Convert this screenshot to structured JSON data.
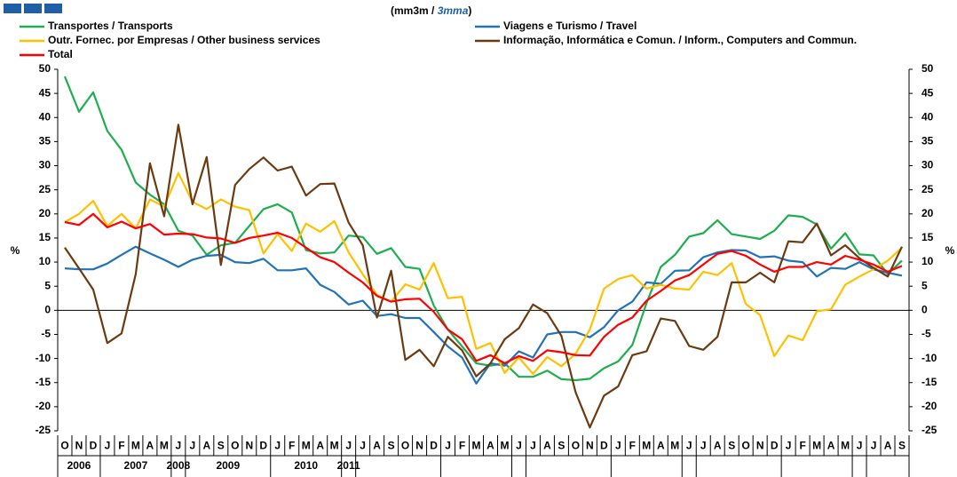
{
  "chart_data": {
    "type": "line",
    "title": "(mm3m / ",
    "title_highlight": "3mma",
    "title_end": ")",
    "y_label": "%",
    "y2_label": "%",
    "categories": [
      "O",
      "N",
      "D",
      "J",
      "F",
      "M",
      "A",
      "M",
      "J",
      "J",
      "A",
      "S",
      "O",
      "N",
      "D",
      "J",
      "F",
      "M",
      "A",
      "M",
      "J",
      "J",
      "A",
      "S",
      "O",
      "N",
      "D",
      "J",
      "F",
      "M",
      "A",
      "M",
      "J",
      "J",
      "A",
      "S",
      "O",
      "N",
      "D",
      "J",
      "F",
      "M",
      "A",
      "M",
      "J",
      "J",
      "A",
      "S",
      "O",
      "N",
      "D",
      "J",
      "F",
      "M",
      "A",
      "M",
      "J",
      "J",
      "A",
      "S"
    ],
    "years": [
      "2006",
      "2007",
      "2008",
      "2009",
      "2010",
      "2011"
    ],
    "ylim": [
      -25,
      50
    ],
    "yticks": [
      -25,
      -20,
      -15,
      -10,
      -5,
      0,
      5,
      10,
      15,
      20,
      25,
      30,
      35,
      40,
      45,
      50
    ],
    "y2lim": [
      -25,
      50
    ],
    "y2ticks": [
      -25,
      -20,
      -15,
      -10,
      -5,
      0,
      5,
      10,
      15,
      20,
      25,
      30,
      35,
      40,
      45,
      50
    ],
    "series": [
      {
        "name": "Transportes / Transports",
        "color": "#1fae4f",
        "values": [
          48.5,
          41.2,
          45.2,
          37.2,
          33.3,
          26.5,
          24,
          22,
          16.5,
          15.5,
          11.5,
          13.5,
          14,
          17.5,
          21,
          22,
          20.3,
          12.5,
          11.8,
          12,
          15.5,
          15.2,
          11.7,
          12.9,
          9,
          8.6,
          1,
          -4,
          -7.5,
          -11,
          -11.5,
          -11,
          -13.8,
          -13.8,
          -12.5,
          -14.3,
          -14.5,
          -14.2,
          -12,
          -10.6,
          -7.2,
          1.5,
          9,
          11.5,
          15.3,
          16,
          18.7,
          15.8,
          15.3,
          14.8,
          16.5,
          19.7,
          19.4,
          17.8,
          12.8,
          16,
          11.6,
          11.4,
          7.5,
          10.3
        ]
      },
      {
        "name": "Viagens e Turismo / Travel",
        "color": "#2272b8",
        "values": [
          8.7,
          8.5,
          8.5,
          9.7,
          11.5,
          13.2,
          11.8,
          10.5,
          9,
          10.5,
          11.3,
          11.5,
          10,
          9.8,
          10.7,
          8.3,
          8.3,
          8.7,
          5.3,
          3.8,
          1.2,
          2,
          -1.2,
          -0.8,
          -1.6,
          -1.6,
          -4.5,
          -7.5,
          -9.8,
          -15.2,
          -11,
          -11.5,
          -8.5,
          -9.8,
          -5,
          -4.5,
          -4.5,
          -5.6,
          -3.5,
          0,
          1.8,
          5.8,
          5.5,
          8.2,
          8.3,
          11,
          12,
          12.5,
          12.4,
          11,
          11.2,
          10.3,
          10,
          7,
          8.8,
          8.6,
          10,
          8.5,
          7.8,
          7.2
        ]
      },
      {
        "name": "Outr. Fornec. por Empresas / Other business services",
        "color": "#ffc000",
        "values": [
          18.3,
          20,
          22.7,
          17.5,
          20,
          17,
          23,
          21.5,
          28.5,
          22.5,
          21,
          23,
          21.5,
          20.8,
          11.8,
          15.8,
          12.3,
          18,
          16.3,
          18.5,
          12,
          7.5,
          3.2,
          1.8,
          5.4,
          4.3,
          9.8,
          2.5,
          2.8,
          -8,
          -6.8,
          -13,
          -9.8,
          -13.2,
          -9.7,
          -11.6,
          -9,
          -4,
          4.5,
          6.5,
          7.3,
          4.5,
          5.3,
          4.5,
          4.3,
          8,
          7.3,
          9.8,
          1.3,
          -1,
          -9.5,
          -5.2,
          -6.2,
          -0.2,
          0.2,
          5.3,
          7,
          8.5,
          10.3,
          13
        ]
      },
      {
        "name": "Informação, Informática e Comun. / Inform., Computers and Commun.",
        "color": "#6b3a10",
        "values": [
          13,
          8.7,
          4.3,
          -6.8,
          -4.8,
          7.5,
          30.5,
          19.5,
          38.5,
          22,
          31.8,
          9.4,
          26,
          29.3,
          31.7,
          29,
          29.8,
          23.8,
          26.2,
          26.3,
          18.2,
          13.5,
          -1.5,
          8.2,
          -10.3,
          -8.2,
          -11.6,
          -5.5,
          -8.3,
          -13.7,
          -11,
          -6,
          -3.7,
          1.2,
          -0.6,
          -5.3,
          -17,
          -24.3,
          -17.7,
          -15.8,
          -9.3,
          -8.5,
          -1.7,
          -2.2,
          -7.4,
          -8.2,
          -5.5,
          5.8,
          5.8,
          7.8,
          5.8,
          14.3,
          14.1,
          18,
          11.4,
          13.5,
          10.8,
          8.8,
          7,
          13.2
        ]
      },
      {
        "name": "Total",
        "color": "#ff0000",
        "values": [
          18.3,
          17.7,
          20,
          17.2,
          18.4,
          17,
          17.9,
          15.7,
          15.9,
          15.8,
          15.1,
          14.9,
          14,
          15,
          15.5,
          16.1,
          15,
          13,
          11,
          10,
          7.8,
          5.8,
          3,
          1.8,
          2.3,
          2.4,
          -0.3,
          -4,
          -6,
          -10.5,
          -9.3,
          -11,
          -9.5,
          -10.5,
          -8.3,
          -8.7,
          -9.3,
          -9.4,
          -5.5,
          -3,
          -1.5,
          2,
          4,
          6.2,
          7.3,
          9.5,
          11.7,
          12.3,
          11.3,
          9.5,
          8,
          9,
          9,
          10,
          9.5,
          11.3,
          10.5,
          9.5,
          8,
          9.2
        ]
      }
    ]
  }
}
